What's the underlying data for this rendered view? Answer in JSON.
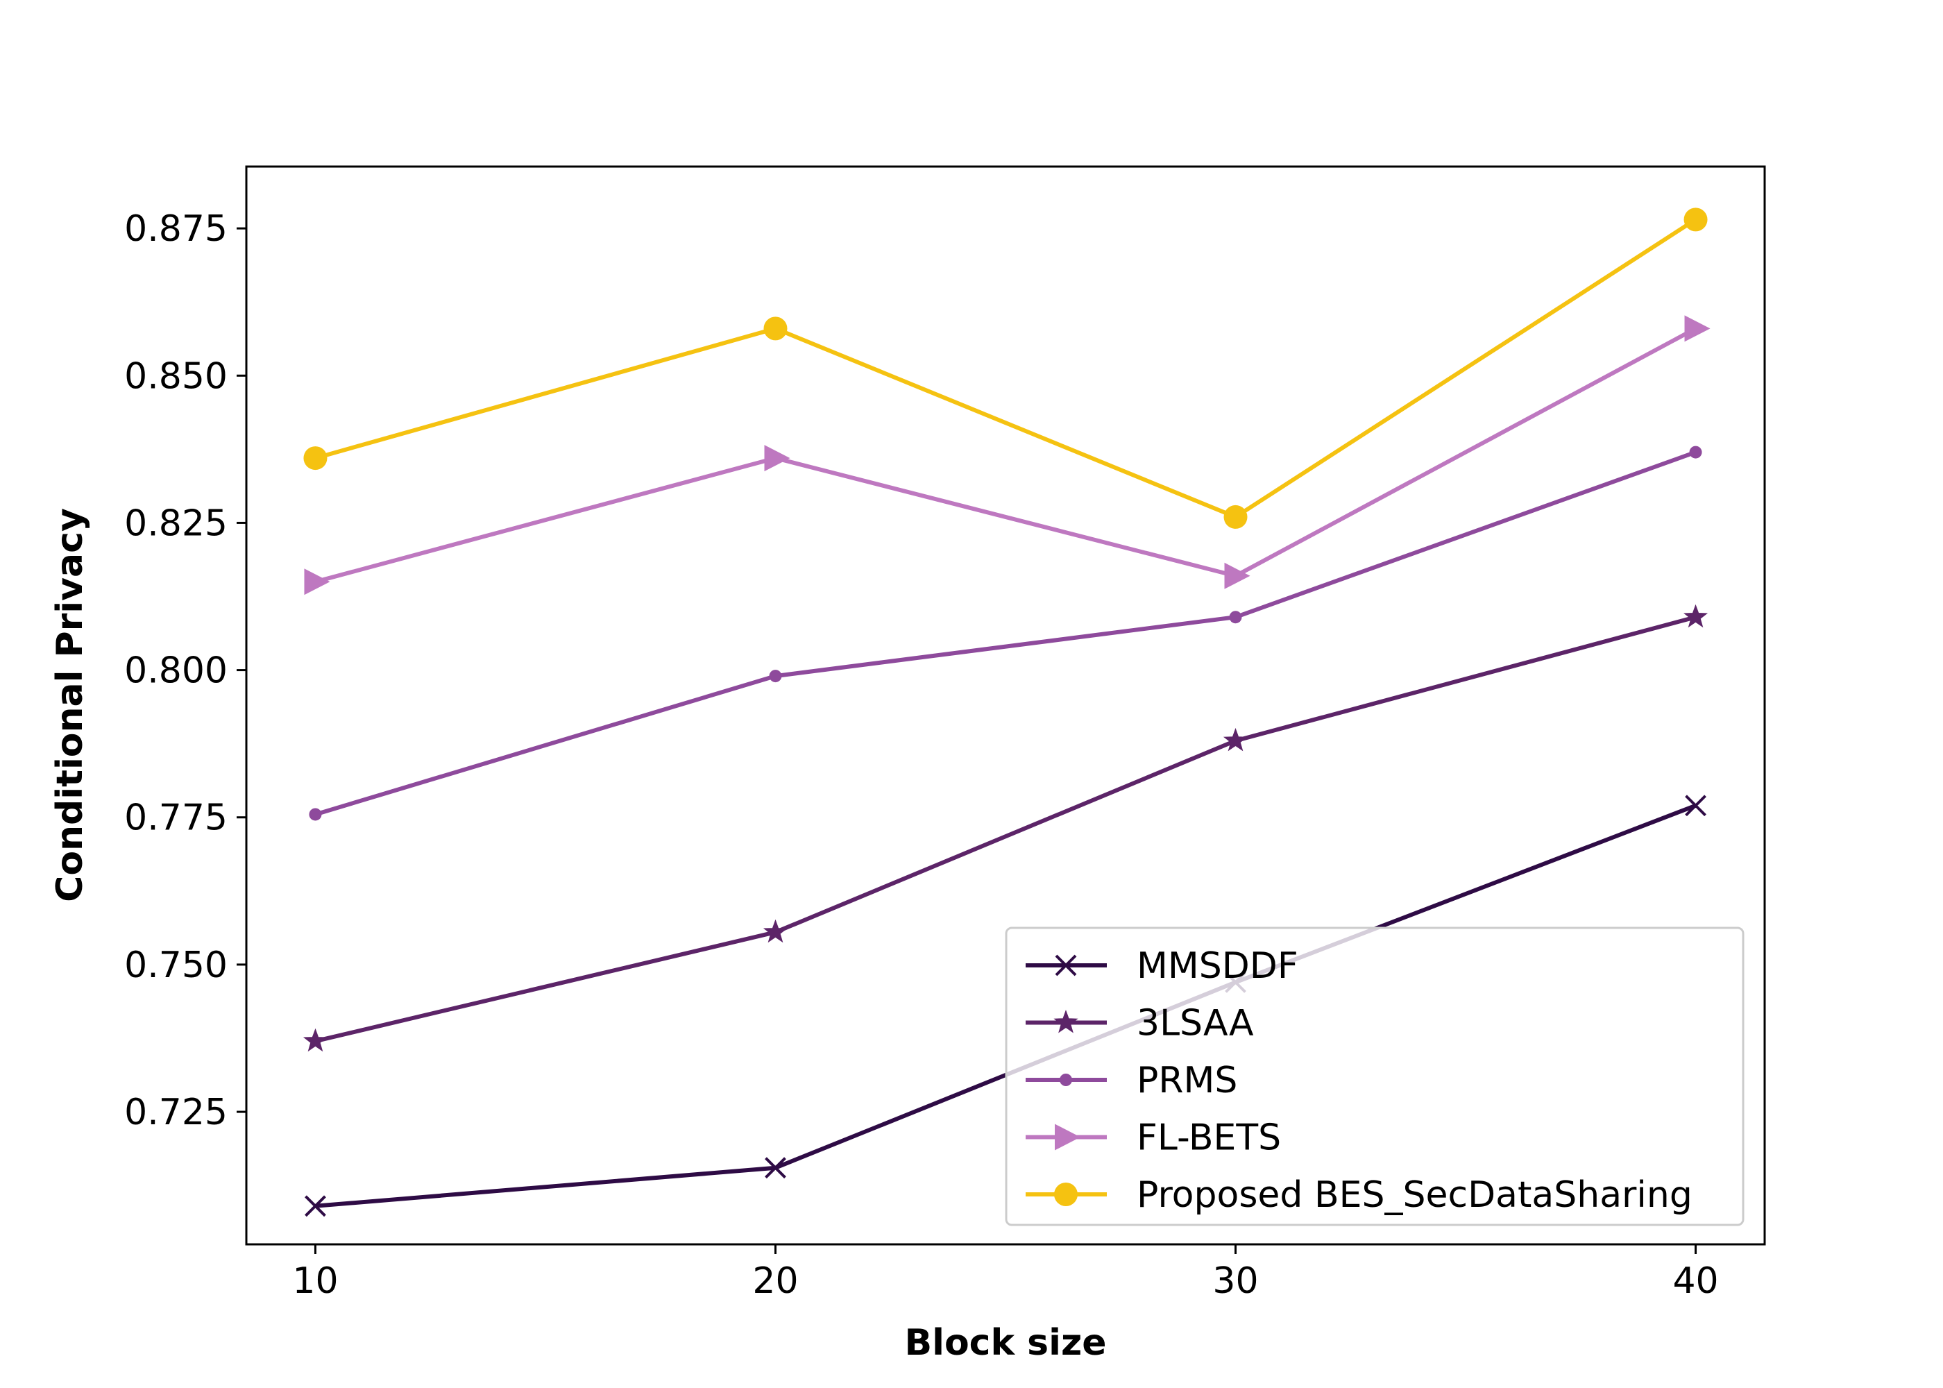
{
  "chart_data": {
    "type": "line",
    "title": "",
    "xlabel": "Block size",
    "ylabel": "Conditional Privacy",
    "x": [
      10,
      20,
      30,
      40
    ],
    "xticks": [
      "10",
      "20",
      "30",
      "40"
    ],
    "yticks": [
      "0.725",
      "0.750",
      "0.775",
      "0.800",
      "0.825",
      "0.850",
      "0.875"
    ],
    "xlim": [
      8.5,
      41.5
    ],
    "ylim": [
      0.7025,
      0.8855
    ],
    "grid": false,
    "legend_position": "lower-right",
    "series": [
      {
        "name": "MMSDDF",
        "values": [
          0.709,
          0.7155,
          0.747,
          0.777
        ],
        "color": "#2e0b45",
        "marker": "x"
      },
      {
        "name": "3LSAA",
        "values": [
          0.737,
          0.7555,
          0.788,
          0.809
        ],
        "color": "#5c2468",
        "marker": "star"
      },
      {
        "name": "PRMS",
        "values": [
          0.7755,
          0.799,
          0.809,
          0.837
        ],
        "color": "#8e4a9c",
        "marker": "point"
      },
      {
        "name": "FL-BETS",
        "values": [
          0.815,
          0.836,
          0.816,
          0.858
        ],
        "color": "#be78c0",
        "marker": "triangle-right"
      },
      {
        "name": "Proposed BES_SecDataSharing",
        "values": [
          0.836,
          0.858,
          0.826,
          0.8765
        ],
        "color": "#f5c211",
        "marker": "circle"
      }
    ]
  }
}
